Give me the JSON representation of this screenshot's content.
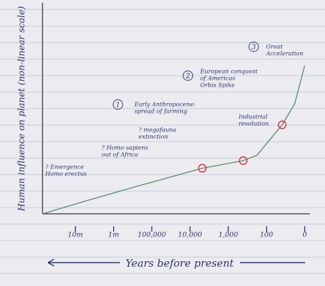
{
  "chart_data": {
    "type": "line",
    "y_label": "Human influence on planet (non-linear scale)",
    "x_label": "Years before present",
    "xlim": [
      -0.86,
      6.1
    ],
    "xticks": [
      {
        "value": 0,
        "label": "10m"
      },
      {
        "value": 1,
        "label": "1m"
      },
      {
        "value": 2,
        "label": "100,000"
      },
      {
        "value": 3,
        "label": "10,000"
      },
      {
        "value": 4,
        "label": "1,000"
      },
      {
        "value": 5,
        "label": "100"
      },
      {
        "value": 6,
        "label": "0"
      }
    ],
    "ylim": [
      0,
      100
    ],
    "series": [
      {
        "color": "#4f8a6a",
        "x": [
          -0.86,
          0.36,
          1.61,
          3.32,
          4.39,
          4.75,
          5.41,
          5.74,
          6.0
        ],
        "values": [
          0,
          6.7,
          13.3,
          22,
          25.7,
          28.3,
          43,
          53.3,
          71.7
        ]
      }
    ],
    "markers": {
      "color": "#d8343c",
      "x": [
        3.32,
        4.39,
        5.41
      ],
      "values": [
        22,
        25.7,
        43
      ]
    },
    "annotations": [
      {
        "lines": [
          "? Emergence",
          "Homo erectus"
        ]
      },
      {
        "lines": [
          "? Homo sapiens",
          "out of Africa"
        ]
      },
      {
        "lines": [
          "? megafauna",
          "extinction"
        ]
      },
      {
        "number": "1",
        "lines": [
          "Early Anthropocene:",
          "spread of farming"
        ]
      },
      {
        "number": "2",
        "lines": [
          "European conquest",
          "of Americas",
          "Orbis Spike"
        ]
      },
      {
        "lines": [
          "Industrial",
          "revolution"
        ]
      },
      {
        "number": "3",
        "lines": [
          "Great",
          "Acceleration"
        ]
      }
    ]
  }
}
